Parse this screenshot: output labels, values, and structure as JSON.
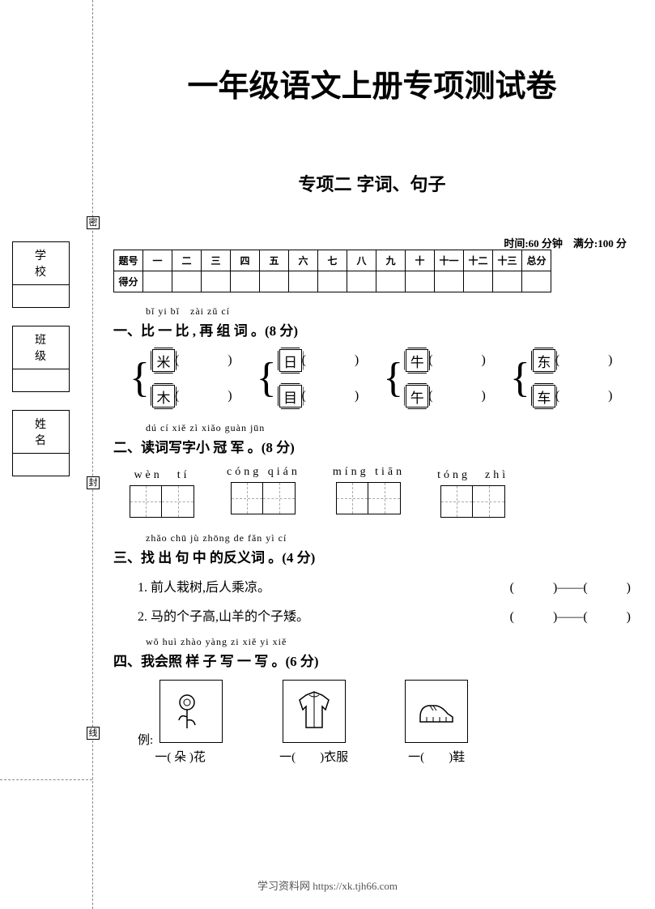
{
  "colors": {
    "background": "#ffffff",
    "text": "#000000",
    "border": "#000000",
    "dash": "#888888",
    "footer": "#555555"
  },
  "left_sidebar": {
    "seals": [
      "密",
      "封",
      "线"
    ],
    "info_labels": [
      "学　校",
      "班　级",
      "姓　名"
    ]
  },
  "header": {
    "main_title": "一年级语文上册专项测试卷",
    "subtitle": "专项二 字词、句子",
    "time_score": "时间:60 分钟　满分:100 分"
  },
  "score_table": {
    "row_headers": [
      "题号",
      "得分"
    ],
    "columns": [
      "一",
      "二",
      "三",
      "四",
      "五",
      "六",
      "七",
      "八",
      "九",
      "十",
      "十一",
      "十二",
      "十三",
      "总分"
    ]
  },
  "q1": {
    "pinyin": "bǐ yi bǐ　zài zǔ cí",
    "title": "一、比 一 比 , 再 组 词 。(8 分)",
    "pairs": [
      {
        "top": "米",
        "bottom": "木"
      },
      {
        "top": "日",
        "bottom": "目"
      },
      {
        "top": "牛",
        "bottom": "午"
      },
      {
        "top": "东",
        "bottom": "车"
      }
    ]
  },
  "q2": {
    "pinyin": "dú cí xiě zì xiǎo guàn jūn",
    "title": "二、读词写字小 冠 军 。(8 分)",
    "words": [
      {
        "pinyin": "wèn　tí"
      },
      {
        "pinyin": "cóng qián"
      },
      {
        "pinyin": "míng tiān"
      },
      {
        "pinyin": "tóng　zhì"
      }
    ]
  },
  "q3": {
    "pinyin": "zhǎo chū jù zhōng de fǎn yì cí",
    "title": "三、找 出 句 中 的反义词 。(4 分)",
    "items": [
      "1. 前人栽树,后人乘凉。",
      "2. 马的个子高,山羊的个子矮。"
    ],
    "answer_template": "(　　　)——(　　　)"
  },
  "q4": {
    "pinyin": "wǒ huì zhào yàng zi xiě yi xiě",
    "title": "四、我会照 样 子 写 一 写 。(6 分)",
    "example_label": "例:",
    "items": [
      {
        "caption_pre": "一(",
        "caption_mid": " 朵 ",
        "caption_post": ")花",
        "icon": "flower"
      },
      {
        "caption_pre": "一(",
        "caption_mid": "　　",
        "caption_post": ")衣服",
        "icon": "jacket"
      },
      {
        "caption_pre": "一(",
        "caption_mid": "　　",
        "caption_post": ")鞋",
        "icon": "shoes"
      }
    ]
  },
  "footer": "学习资料网 https://xk.tjh66.com"
}
